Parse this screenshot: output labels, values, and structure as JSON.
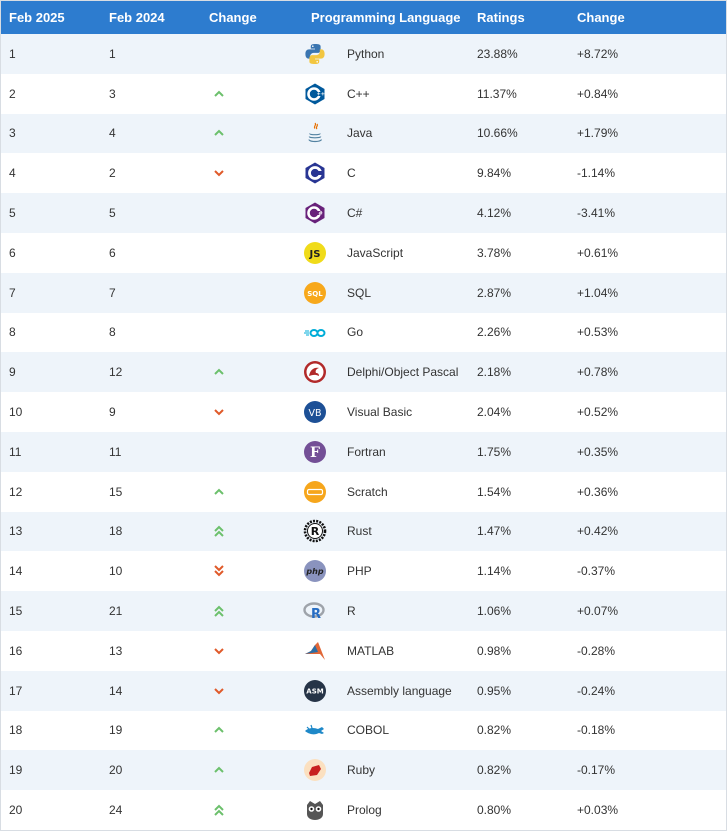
{
  "headers": {
    "current": "Feb 2025",
    "previous": "Feb 2024",
    "change": "Change",
    "language": "Programming Language",
    "ratings": "Ratings",
    "change_pct": "Change"
  },
  "colors": {
    "header_bg": "#2d7ccf",
    "up_arrow": "#6cc06c",
    "down_arrow": "#e05a2a"
  },
  "rows": [
    {
      "rank": "1",
      "prev": "1",
      "trend": "none",
      "language": "Python",
      "rating": "23.88%",
      "change": "+8.72%",
      "icon": "python-icon"
    },
    {
      "rank": "2",
      "prev": "3",
      "trend": "up",
      "language": "C++",
      "rating": "11.37%",
      "change": "+0.84%",
      "icon": "cpp-icon"
    },
    {
      "rank": "3",
      "prev": "4",
      "trend": "up",
      "language": "Java",
      "rating": "10.66%",
      "change": "+1.79%",
      "icon": "java-icon"
    },
    {
      "rank": "4",
      "prev": "2",
      "trend": "down",
      "language": "C",
      "rating": "9.84%",
      "change": "-1.14%",
      "icon": "c-icon"
    },
    {
      "rank": "5",
      "prev": "5",
      "trend": "none",
      "language": "C#",
      "rating": "4.12%",
      "change": "-3.41%",
      "icon": "csharp-icon"
    },
    {
      "rank": "6",
      "prev": "6",
      "trend": "none",
      "language": "JavaScript",
      "rating": "3.78%",
      "change": "+0.61%",
      "icon": "javascript-icon"
    },
    {
      "rank": "7",
      "prev": "7",
      "trend": "none",
      "language": "SQL",
      "rating": "2.87%",
      "change": "+1.04%",
      "icon": "sql-icon"
    },
    {
      "rank": "8",
      "prev": "8",
      "trend": "none",
      "language": "Go",
      "rating": "2.26%",
      "change": "+0.53%",
      "icon": "go-icon"
    },
    {
      "rank": "9",
      "prev": "12",
      "trend": "up",
      "language": "Delphi/Object Pascal",
      "rating": "2.18%",
      "change": "+0.78%",
      "icon": "delphi-icon"
    },
    {
      "rank": "10",
      "prev": "9",
      "trend": "down",
      "language": "Visual Basic",
      "rating": "2.04%",
      "change": "+0.52%",
      "icon": "visual-basic-icon"
    },
    {
      "rank": "11",
      "prev": "11",
      "trend": "none",
      "language": "Fortran",
      "rating": "1.75%",
      "change": "+0.35%",
      "icon": "fortran-icon"
    },
    {
      "rank": "12",
      "prev": "15",
      "trend": "up",
      "language": "Scratch",
      "rating": "1.54%",
      "change": "+0.36%",
      "icon": "scratch-icon"
    },
    {
      "rank": "13",
      "prev": "18",
      "trend": "upup",
      "language": "Rust",
      "rating": "1.47%",
      "change": "+0.42%",
      "icon": "rust-icon"
    },
    {
      "rank": "14",
      "prev": "10",
      "trend": "downdown",
      "language": "PHP",
      "rating": "1.14%",
      "change": "-0.37%",
      "icon": "php-icon"
    },
    {
      "rank": "15",
      "prev": "21",
      "trend": "upup",
      "language": "R",
      "rating": "1.06%",
      "change": "+0.07%",
      "icon": "r-icon"
    },
    {
      "rank": "16",
      "prev": "13",
      "trend": "down",
      "language": "MATLAB",
      "rating": "0.98%",
      "change": "-0.28%",
      "icon": "matlab-icon"
    },
    {
      "rank": "17",
      "prev": "14",
      "trend": "down",
      "language": "Assembly language",
      "rating": "0.95%",
      "change": "-0.24%",
      "icon": "assembly-icon"
    },
    {
      "rank": "18",
      "prev": "19",
      "trend": "up",
      "language": "COBOL",
      "rating": "0.82%",
      "change": "-0.18%",
      "icon": "cobol-icon"
    },
    {
      "rank": "19",
      "prev": "20",
      "trend": "up",
      "language": "Ruby",
      "rating": "0.82%",
      "change": "-0.17%",
      "icon": "ruby-icon"
    },
    {
      "rank": "20",
      "prev": "24",
      "trend": "upup",
      "language": "Prolog",
      "rating": "0.80%",
      "change": "+0.03%",
      "icon": "prolog-icon"
    }
  ],
  "icon_text": {
    "javascript-icon": "JS",
    "sql-icon": "SQL",
    "visual-basic-icon": "VB",
    "fortran-icon": "F",
    "php-icon": "php",
    "r-icon": "R",
    "assembly-icon": "ASM",
    "rust-icon": "R"
  }
}
